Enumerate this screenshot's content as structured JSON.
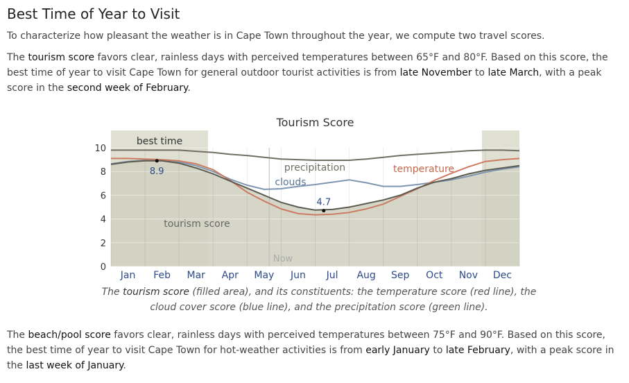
{
  "section": {
    "title": "Best Time of Year to Visit",
    "intro": "To characterize how pleasant the weather is in Cape Town throughout the year, we compute two travel scores.",
    "tourism": {
      "t1": "The ",
      "k1": "tourism score",
      "t2": " favors clear, rainless days with perceived temperatures between 65°F and 80°F. Based on this score, the best time of year to visit Cape Town for general outdoor tourist activities is from ",
      "k2": "late November",
      "t3": " to ",
      "k3": "late March",
      "t4": ", with a peak score in the ",
      "k4": "second week of February",
      "t5": "."
    },
    "caption": {
      "t1": "The ",
      "k1": "tourism score",
      "t2": " (filled area), and its constituents: the temperature score (red line), the cloud cover score (blue line), and the precipitation score (green line)."
    },
    "beach": {
      "t1": "The ",
      "k1": "beach/pool score",
      "t2": " favors clear, rainless days with perceived temperatures between 75°F and 90°F. Based on this score, the best time of year to visit Cape Town for hot-weather activities is from ",
      "k2": "early January",
      "t3": " to ",
      "k3": "late February",
      "t4": ", with a peak score in the ",
      "k4": "last week of January",
      "t5": "."
    }
  },
  "chart_data": {
    "type": "area",
    "title": "Tourism Score",
    "ylim": [
      0,
      10
    ],
    "yticks": [
      0,
      2,
      4,
      6,
      8,
      10
    ],
    "months": [
      "Jan",
      "Feb",
      "Mar",
      "Apr",
      "May",
      "Jun",
      "Jul",
      "Aug",
      "Sep",
      "Oct",
      "Nov",
      "Dec"
    ],
    "x_domain": [
      0,
      12
    ],
    "best_time_label": "best time",
    "best_time_ranges": [
      [
        0,
        2.85
      ],
      [
        10.9,
        12
      ]
    ],
    "now_label": "Now",
    "now_x": 4.65,
    "peaks": [
      {
        "label": "8.9",
        "x": 1.35,
        "y": 8.9
      },
      {
        "label": "4.7",
        "x": 6.25,
        "y": 4.7
      }
    ],
    "series_labels": {
      "tourism": "tourism score",
      "precipitation": "precipitation",
      "clouds": "clouds",
      "temperature": "temperature"
    },
    "colors": {
      "tourism_fill": "#d2d2c2",
      "tourism_line": "#5b5b50",
      "best_time_band": "#dfdfd2",
      "precipitation": "#6f6f64",
      "clouds": "#7f96b0",
      "temperature": "#cc7b62",
      "month_label": "#2c4a8a",
      "now_line": "#bbbbbb"
    },
    "x": [
      0,
      0.5,
      1,
      1.5,
      2,
      2.5,
      3,
      3.5,
      4,
      4.5,
      5,
      5.5,
      6,
      6.5,
      7,
      7.5,
      8,
      8.5,
      9,
      9.5,
      10,
      10.5,
      11,
      11.5,
      12
    ],
    "series": [
      {
        "key": "tourism",
        "values": [
          8.6,
          8.8,
          8.9,
          8.9,
          8.7,
          8.3,
          7.8,
          7.2,
          6.6,
          6.0,
          5.4,
          5.0,
          4.75,
          4.8,
          5.0,
          5.3,
          5.6,
          6.0,
          6.6,
          7.1,
          7.4,
          7.8,
          8.1,
          8.3,
          8.5
        ]
      },
      {
        "key": "precipitation",
        "values": [
          9.8,
          9.8,
          9.8,
          9.8,
          9.8,
          9.7,
          9.6,
          9.45,
          9.35,
          9.2,
          9.05,
          9.0,
          8.95,
          8.95,
          8.95,
          9.05,
          9.2,
          9.35,
          9.45,
          9.55,
          9.65,
          9.75,
          9.8,
          9.8,
          9.75
        ]
      },
      {
        "key": "clouds",
        "values": [
          8.65,
          8.85,
          8.95,
          8.95,
          8.8,
          8.5,
          8.0,
          7.35,
          6.85,
          6.5,
          6.55,
          6.75,
          6.9,
          7.1,
          7.3,
          7.05,
          6.75,
          6.75,
          6.9,
          7.1,
          7.3,
          7.6,
          7.95,
          8.2,
          8.4
        ]
      },
      {
        "key": "temperature",
        "values": [
          9.1,
          9.1,
          9.05,
          9.0,
          8.9,
          8.65,
          8.15,
          7.25,
          6.25,
          5.5,
          4.85,
          4.45,
          4.35,
          4.4,
          4.55,
          4.85,
          5.25,
          5.9,
          6.55,
          7.25,
          7.85,
          8.4,
          8.85,
          9.0,
          9.1
        ]
      }
    ]
  }
}
